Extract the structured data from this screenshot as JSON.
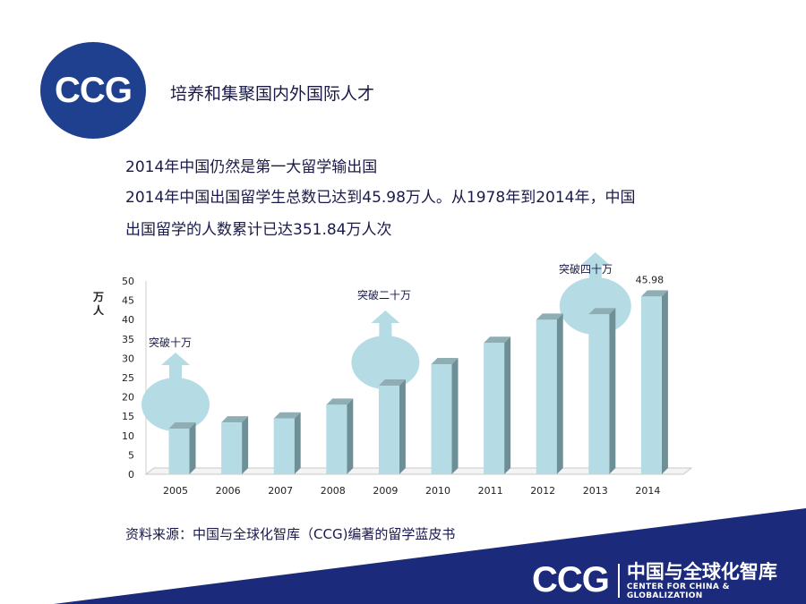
{
  "logo": {
    "text": "CCG"
  },
  "header": {
    "title": "培养和集聚国内外国际人才"
  },
  "intro": [
    "2014年中国仍然是第一大留学输出国",
    "2014年中国出国留学生总数已达到45.98万人。从1978年到2014年，中国",
    "出国留学的人数累计已达351.84万人次"
  ],
  "chart_data": {
    "type": "bar",
    "ylabel": "万人",
    "ylim": [
      0,
      50
    ],
    "yticks": [
      "0",
      "5",
      "10",
      "15",
      "20",
      "25",
      "30",
      "35",
      "40",
      "45",
      "50"
    ],
    "categories": [
      "2005",
      "2006",
      "2007",
      "2008",
      "2009",
      "2010",
      "2011",
      "2012",
      "2013",
      "2014"
    ],
    "values": [
      11.8,
      13.4,
      14.4,
      17.98,
      22.93,
      28.47,
      33.97,
      39.96,
      41.39,
      45.98
    ],
    "value_labels": [
      {
        "index": 9,
        "text": "45.98"
      }
    ],
    "annotations": [
      {
        "index": 0,
        "text": "突破十万"
      },
      {
        "index": 4,
        "text": "突破二十万"
      },
      {
        "index": 8,
        "text": "突破四十万"
      }
    ],
    "bar_color": "#b5dce4",
    "grid": false
  },
  "source": "资料来源：中国与全球化智库（CCG)编著的留学蓝皮书",
  "footer": {
    "logo": "CCG",
    "name_cn": "中国与全球化智库",
    "name_en": "CENTER FOR CHINA & GLOBALIZATION",
    "band_color": "#1b2a7a"
  }
}
